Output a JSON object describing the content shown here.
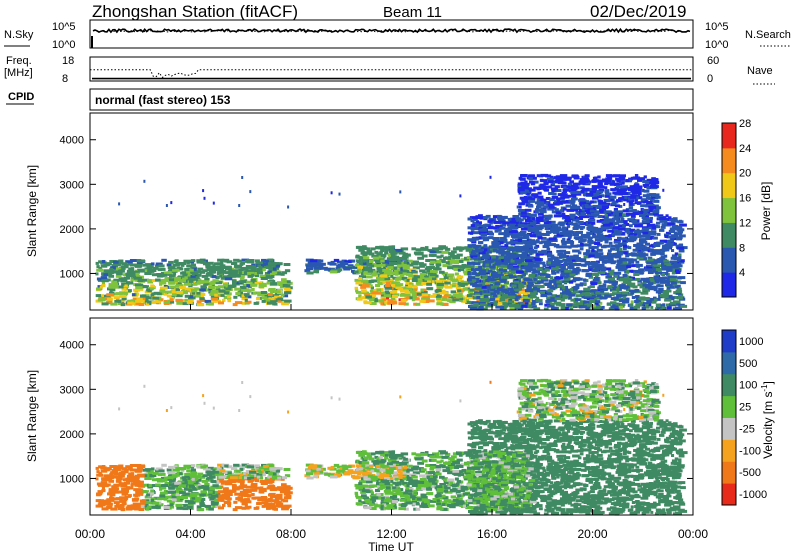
{
  "header": {
    "station": "Zhongshan Station (fitACF)",
    "beam": "Beam 11",
    "date": "02/Dec/2019"
  },
  "noise_panel": {
    "left_label": "N.Sky",
    "left_ticks": [
      "10^5",
      "10^0"
    ],
    "right_ticks": [
      "10^5",
      "10^0"
    ],
    "right_label": "N.Search",
    "series": [
      {
        "name": "N.Sky",
        "style": "solid",
        "level": 0.62
      },
      {
        "name": "N.Search",
        "style": "dotted",
        "level": 0.6
      }
    ]
  },
  "freq_panel": {
    "left_label_1": "Freq.",
    "left_label_2": "[MHz]",
    "left_ticks": [
      "18",
      "8"
    ],
    "right_ticks": [
      "60",
      "0"
    ],
    "right_label": "Nave",
    "freq_mhz": 9.0,
    "nave": 28
  },
  "cpid": {
    "label": "CPID",
    "mode_text": "normal (fast stereo) 153"
  },
  "time_axis": {
    "ticks": [
      "00:00",
      "04:00",
      "08:00",
      "12:00",
      "16:00",
      "20:00",
      "00:00"
    ],
    "label": "Time UT"
  },
  "range_axis": {
    "label": "Slant Range [km]",
    "ticks": [
      "1000",
      "2000",
      "3000",
      "4000"
    ],
    "ylim": [
      180,
      4600
    ]
  },
  "power_scale": {
    "label": "Power [dB]",
    "ticks": [
      "4",
      "8",
      "12",
      "16",
      "20",
      "24",
      "28"
    ],
    "colors": [
      "#1e28e6",
      "#2a57b0",
      "#3f8a62",
      "#7fc23c",
      "#f0c818",
      "#f58a1e",
      "#e8281e"
    ]
  },
  "velocity_scale": {
    "label": "Velocity [m s",
    "exponent": "-1",
    "label_end": "]",
    "ticks": [
      "1000",
      "500",
      "100",
      "25",
      "-25",
      "-100",
      "-500",
      "-1000"
    ],
    "colors": [
      "#1e3cc8",
      "#2e6aa8",
      "#3f8a62",
      "#5fbf3a",
      "#c4c4c4",
      "#f5a21e",
      "#f07818",
      "#e82a1a"
    ]
  },
  "chart_data": [
    {
      "type": "heatmap",
      "panel": "power",
      "xlabel": "Time UT",
      "ylabel": "Slant Range [km]",
      "x_unit": "hours UT",
      "xlim": [
        0,
        24
      ],
      "ylim": [
        180,
        4600
      ],
      "colorbar_label": "Power [dB]",
      "zlim": [
        0,
        32
      ],
      "echo_regions": [
        {
          "t_start": 0.2,
          "t_end": 7.8,
          "r_low": 300,
          "r_high": 1300,
          "z_peak": 28
        },
        {
          "t_start": 8.5,
          "t_end": 12.5,
          "r_low": 1000,
          "r_high": 1300,
          "z_peak": 16
        },
        {
          "t_start": 10.5,
          "t_end": 17.5,
          "r_low": 300,
          "r_high": 1600,
          "z_peak": 30
        },
        {
          "t_start": 15.0,
          "t_end": 23.5,
          "r_low": 200,
          "r_high": 2300,
          "z_peak": 14
        },
        {
          "t_start": 17.0,
          "t_end": 22.5,
          "r_low": 2300,
          "r_high": 3200,
          "z_peak": 8
        }
      ]
    },
    {
      "type": "heatmap",
      "panel": "velocity",
      "xlabel": "Time UT",
      "ylabel": "Slant Range [km]",
      "x_unit": "hours UT",
      "xlim": [
        0,
        24
      ],
      "ylim": [
        180,
        4600
      ],
      "colorbar_label": "Velocity [m s-1]",
      "zlim": [
        -1000,
        1000
      ],
      "echo_regions": [
        {
          "t_start": 0.2,
          "t_end": 2.0,
          "r_low": 300,
          "r_high": 1300,
          "v_typical": -300
        },
        {
          "t_start": 2.0,
          "t_end": 5.0,
          "r_low": 300,
          "r_high": 1200,
          "v_typical": 100
        },
        {
          "t_start": 5.0,
          "t_end": 7.8,
          "r_low": 300,
          "r_high": 1000,
          "v_typical": -400
        },
        {
          "t_start": 8.5,
          "t_end": 12.5,
          "r_low": 1000,
          "r_high": 1300,
          "v_typical": 0
        },
        {
          "t_start": 10.5,
          "t_end": 17.5,
          "r_low": 300,
          "r_high": 1600,
          "v_typical": 100
        },
        {
          "t_start": 15.0,
          "t_end": 23.5,
          "r_low": 200,
          "r_high": 2300,
          "v_typical": 200
        }
      ]
    }
  ]
}
